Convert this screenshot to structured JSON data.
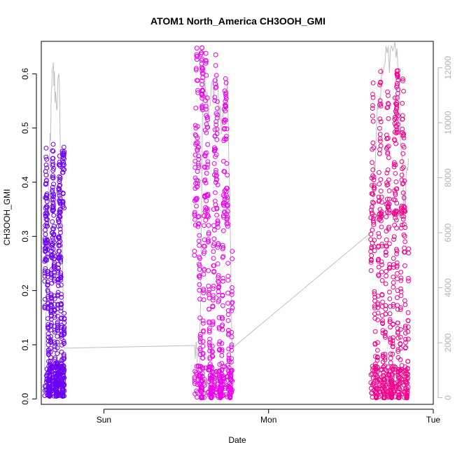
{
  "chart_data": {
    "type": "scatter",
    "title": "ATOM1 North_America CH3OOH_GMI",
    "xlabel": "Date",
    "ylabel": "CH3OOH_GMI",
    "x_unit": "days",
    "xlim": [
      -0.38,
      2.0
    ],
    "ylim": [
      -0.01,
      0.66
    ],
    "x_ticks": [
      {
        "label": "Sun",
        "value": 0.0
      },
      {
        "label": "Mon",
        "value": 1.0
      },
      {
        "label": "Tue",
        "value": 2.0
      }
    ],
    "y_ticks": [
      "0.0",
      "0.1",
      "0.2",
      "0.3",
      "0.4",
      "0.5",
      "0.6"
    ],
    "y2_ticks": [
      "0",
      "2000",
      "4000",
      "6000",
      "8000",
      "10000",
      "12000"
    ],
    "y2lim": [
      -240,
      12960
    ],
    "colors": {
      "axis": "#000000",
      "altitude_line": "#bfbfbf",
      "right_axis": "#b3b3b3",
      "flight1": "#6d00f5",
      "flight2": "#ee00ee",
      "flight3": "#f4008c"
    },
    "flights": [
      {
        "x_start": -0.36,
        "x_end": -0.24,
        "peak_y": 0.47,
        "low_y": 0.005
      },
      {
        "x_start": 0.55,
        "x_end": 0.78,
        "peak_y": 0.65,
        "low_y": 0.002
      },
      {
        "x_start": 1.62,
        "x_end": 1.85,
        "peak_y": 0.61,
        "low_y": 0.002
      }
    ],
    "altitude_series_y2": [
      {
        "x": -0.36,
        "y": 1000
      },
      {
        "x": -0.33,
        "y": 8800
      },
      {
        "x": -0.31,
        "y": 12000
      },
      {
        "x": -0.29,
        "y": 10800
      },
      {
        "x": -0.27,
        "y": 11300
      },
      {
        "x": -0.24,
        "y": 1800
      },
      {
        "x": 0.55,
        "y": 1900
      },
      {
        "x": 0.58,
        "y": 300
      },
      {
        "x": 0.6,
        "y": 11000
      },
      {
        "x": 0.64,
        "y": 10600
      },
      {
        "x": 0.68,
        "y": 11400
      },
      {
        "x": 0.72,
        "y": 10000
      },
      {
        "x": 0.75,
        "y": 11600
      },
      {
        "x": 0.78,
        "y": 1800
      },
      {
        "x": 1.62,
        "y": 6000
      },
      {
        "x": 1.66,
        "y": 10600
      },
      {
        "x": 1.7,
        "y": 12000
      },
      {
        "x": 1.74,
        "y": 12700
      },
      {
        "x": 1.78,
        "y": 12700
      },
      {
        "x": 1.82,
        "y": 7000
      },
      {
        "x": 1.85,
        "y": 8700
      }
    ]
  }
}
